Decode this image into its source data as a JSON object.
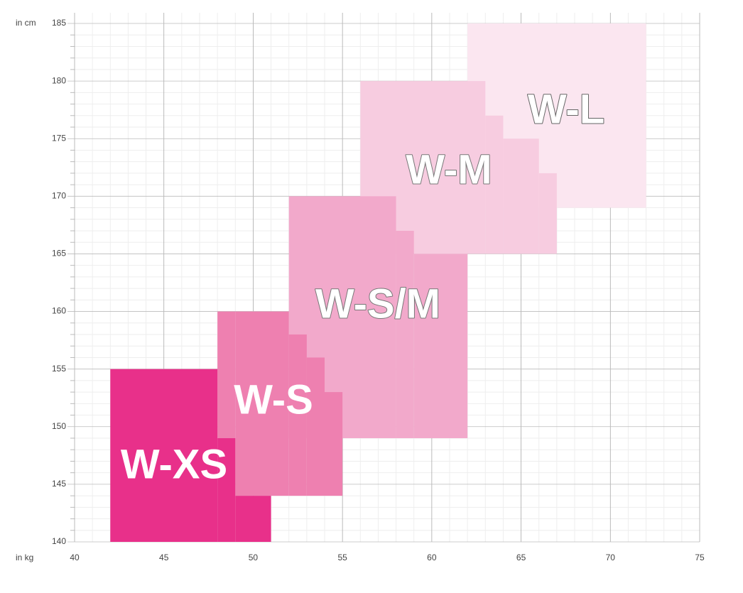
{
  "chart_data": {
    "type": "region",
    "y_axis_label": "in cm",
    "x_axis_label": "in kg",
    "xlim": [
      40,
      75
    ],
    "xticks": [
      40,
      45,
      50,
      55,
      60,
      65,
      70,
      75
    ],
    "ylim": [
      140,
      185
    ],
    "yticks": [
      140,
      145,
      150,
      155,
      160,
      165,
      170,
      175,
      180,
      185
    ],
    "grid": true,
    "series": [
      {
        "name": "W-L",
        "color": "#fbe6f0",
        "columns": [
          {
            "x": [
              62,
              72
            ],
            "y": [
              169,
              185
            ]
          }
        ]
      },
      {
        "name": "W-M",
        "color": "#f7cce0",
        "columns": [
          {
            "x": [
              56,
              63
            ],
            "y": [
              165,
              180
            ]
          },
          {
            "x": [
              63,
              64
            ],
            "y": [
              165,
              177
            ]
          },
          {
            "x": [
              64,
              66
            ],
            "y": [
              165,
              175
            ]
          },
          {
            "x": [
              66,
              67
            ],
            "y": [
              165,
              172
            ]
          }
        ]
      },
      {
        "name": "W-S/M",
        "color": "#f2a9cb",
        "columns": [
          {
            "x": [
              52,
              58
            ],
            "y": [
              149,
              170
            ]
          },
          {
            "x": [
              58,
              59
            ],
            "y": [
              149,
              167
            ]
          },
          {
            "x": [
              59,
              62
            ],
            "y": [
              149,
              165
            ]
          }
        ]
      },
      {
        "name": "W-S",
        "color": "#ee80b0",
        "columns": [
          {
            "x": [
              48,
              49
            ],
            "y": [
              149,
              160
            ]
          },
          {
            "x": [
              49,
              52
            ],
            "y": [
              144,
              160
            ]
          },
          {
            "x": [
              52,
              53
            ],
            "y": [
              144,
              158
            ]
          },
          {
            "x": [
              53,
              54
            ],
            "y": [
              144,
              156
            ]
          },
          {
            "x": [
              54,
              55
            ],
            "y": [
              144,
              153
            ]
          }
        ]
      },
      {
        "name": "W-XS",
        "color": "#e8308a",
        "columns": [
          {
            "x": [
              42,
              48
            ],
            "y": [
              140,
              155
            ]
          },
          {
            "x": [
              48,
              49
            ],
            "y": [
              140,
              149
            ]
          },
          {
            "x": [
              49,
              51
            ],
            "y": [
              140,
              144
            ]
          }
        ]
      }
    ]
  }
}
